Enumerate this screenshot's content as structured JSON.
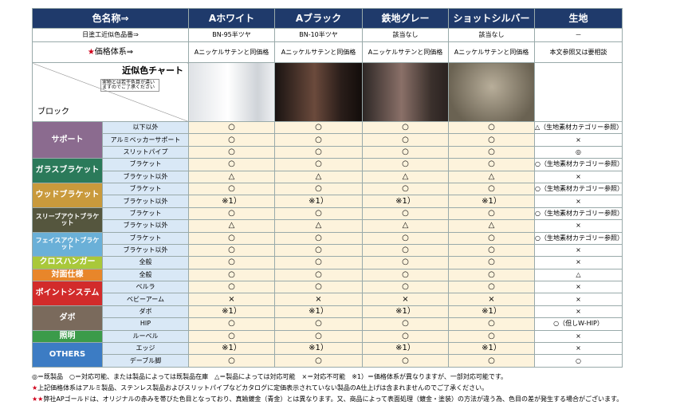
{
  "header": {
    "corner_label": "色名称⇒",
    "columns": [
      "Aホワイト",
      "Aブラック",
      "鉄地グレー",
      "ショットシルバー",
      "生地"
    ]
  },
  "code_row": {
    "label": "日塗工近似色品番⇒",
    "values": [
      "BN-95半ツヤ",
      "BN-10半ツヤ",
      "該当なし",
      "該当なし",
      "－"
    ]
  },
  "price_row": {
    "mark": "★",
    "label": "価格体系⇒",
    "values": [
      "Aニッケルサテンと同価格",
      "Aニッケルサテンと同価格",
      "Aニッケルサテンと同価格",
      "Aニッケルサテンと同価格",
      "本文参照又は要相談"
    ]
  },
  "chart_row": {
    "label": "近似色チャート",
    "note": "実物とは若干色目が違いますのでご了承ください",
    "block_label": "ブロック"
  },
  "groups": [
    {
      "name": "サポート",
      "rows": [
        {
          "name": "以下以外",
          "cells": [
            "○",
            "○",
            "○",
            "○",
            "△（生地素材カテゴリー参照）"
          ]
        },
        {
          "name": "アルミベッカーサポート",
          "cells": [
            "○",
            "○",
            "○",
            "○",
            "×"
          ]
        },
        {
          "name": "スリットパイプ",
          "cells": [
            "○",
            "○",
            "○",
            "○",
            "◎"
          ]
        }
      ]
    },
    {
      "name": "ガラスブラケット",
      "rows": [
        {
          "name": "ブラケット",
          "cells": [
            "○",
            "○",
            "○",
            "○",
            "○（生地素材カテゴリー参照）"
          ]
        },
        {
          "name": "ブラケット以外",
          "cells": [
            "△",
            "△",
            "△",
            "△",
            "×"
          ]
        }
      ]
    },
    {
      "name": "ウッドブラケット",
      "rows": [
        {
          "name": "ブラケット",
          "cells": [
            "○",
            "○",
            "○",
            "○",
            "○（生地素材カテゴリー参照）"
          ]
        },
        {
          "name": "ブラケット以外",
          "cells": [
            "※1）",
            "※1）",
            "※1）",
            "※1）",
            "×"
          ]
        }
      ]
    },
    {
      "name": "スリーブアウトブラケット",
      "rows": [
        {
          "name": "ブラケット",
          "cells": [
            "○",
            "○",
            "○",
            "○",
            "○（生地素材カテゴリー参照）"
          ]
        },
        {
          "name": "ブラケット以外",
          "cells": [
            "△",
            "△",
            "△",
            "△",
            "×"
          ]
        }
      ]
    },
    {
      "name": "フェイスアウトブラケット",
      "rows": [
        {
          "name": "ブラケット",
          "cells": [
            "○",
            "○",
            "○",
            "○",
            "○（生地素材カテゴリー参照）"
          ]
        },
        {
          "name": "ブラケット以外",
          "cells": [
            "○",
            "○",
            "○",
            "○",
            "×"
          ]
        }
      ]
    },
    {
      "name": "クロスハンガー",
      "rows": [
        {
          "name": "全般",
          "cells": [
            "○",
            "○",
            "○",
            "○",
            "×"
          ]
        }
      ]
    },
    {
      "name": "対面仕様",
      "rows": [
        {
          "name": "全般",
          "cells": [
            "○",
            "○",
            "○",
            "○",
            "△"
          ]
        }
      ]
    },
    {
      "name": "ポイントシステム",
      "rows": [
        {
          "name": "ベルラ",
          "cells": [
            "○",
            "○",
            "○",
            "○",
            "×"
          ]
        },
        {
          "name": "ベビーアーム",
          "cells": [
            "×",
            "×",
            "×",
            "×",
            "×"
          ]
        }
      ]
    },
    {
      "name": "ダボ",
      "rows": [
        {
          "name": "ダボ",
          "cells": [
            "※1）",
            "※1）",
            "※1）",
            "※1）",
            "×"
          ]
        },
        {
          "name": "HIP",
          "cells": [
            "○",
            "○",
            "○",
            "○",
            "○（但しW-HIP）"
          ]
        }
      ]
    },
    {
      "name": "照明",
      "rows": [
        {
          "name": "ルーベル",
          "cells": [
            "○",
            "○",
            "○",
            "○",
            "×"
          ]
        }
      ]
    },
    {
      "name": "OTHERS",
      "rows": [
        {
          "name": "エッジ",
          "cells": [
            "※1）",
            "※1）",
            "※1）",
            "※1）",
            "×"
          ]
        },
        {
          "name": "デーブル脚",
          "cells": [
            "○",
            "○",
            "○",
            "○",
            "○"
          ]
        }
      ]
    }
  ],
  "legend": "◎＝既製品　○＝対応可能、または製品によっては既製品在庫　△＝製品によっては対応可能　×＝対応不可能　※1）＝価格体系が異なりますが、一部対応可能です。",
  "notes": [
    {
      "mark": "★",
      "text": "上記価格体系はアルミ製品、ステンレス製品およびスリットパイプなどカタログに定価表示されていない製品のA仕上げは含まれませんのでご了承ください。"
    },
    {
      "mark": "★★",
      "text": "弊社APゴールドは、オリジナルの赤みを帯びた色目となっており、真鍮鍍金（青金）とは異なります。又、商品によって表面処理（鍍金・塗装）の方法が違う為、色目の差が発生する場合がございます。"
    }
  ]
}
